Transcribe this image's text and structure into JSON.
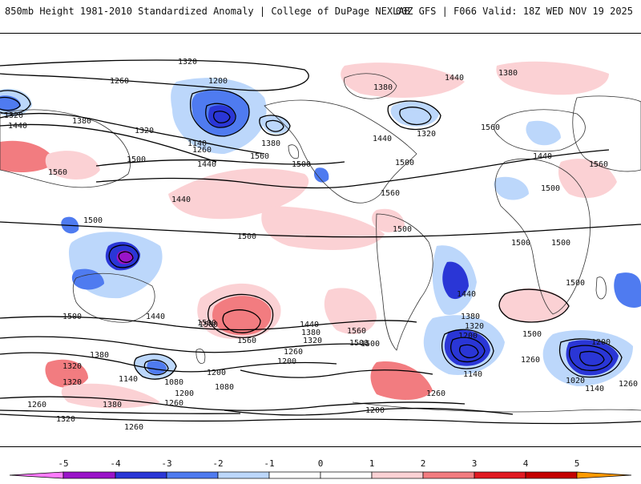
{
  "header": {
    "title": "850mb Height 1981-2010 Standardized Anomaly | College of DuPage NEXLAB",
    "run_info": "00Z GFS | F066 Valid: 18Z WED NOV 19 2025"
  },
  "colors": {
    "neg5": "#ff7bff",
    "neg4": "#9a14c8",
    "neg3": "#2a36d6",
    "neg2": "#4f7bf0",
    "neg1": "#bcd7fb",
    "pos1": "#fbd1d4",
    "pos2": "#f27c80",
    "pos3": "#e11a22",
    "pos4": "#c40000",
    "pos5": "#ff9a00",
    "contour": "#000000",
    "land": "#333333"
  },
  "legend": {
    "ticks": [
      "-5",
      "-4",
      "-3",
      "-2",
      "-1",
      "0",
      "1",
      "2",
      "3",
      "4",
      "5"
    ]
  },
  "contour_labels": [
    "1320",
    "1260",
    "1200",
    "1320",
    "1440",
    "1380",
    "1320",
    "1140",
    "1260",
    "1380",
    "1500",
    "1560",
    "1560",
    "1440",
    "1500",
    "1380",
    "1320",
    "1440",
    "1380",
    "1560",
    "1440",
    "1500",
    "1560",
    "1500",
    "1440",
    "1500",
    "1500",
    "1500",
    "1560",
    "1440",
    "1380",
    "1320",
    "1200",
    "1140",
    "1500",
    "1200",
    "1260",
    "1560",
    "1500",
    "1440",
    "1380",
    "1320",
    "1260",
    "1200",
    "1140",
    "1080",
    "1200",
    "1260",
    "1080",
    "1320",
    "1380",
    "1320",
    "1260",
    "1200",
    "1260",
    "1320",
    "1380",
    "1440",
    "1500",
    "1500",
    "1560",
    "1500",
    "1500",
    "1440",
    "1260",
    "1200",
    "1020",
    "1140",
    "1260",
    "1500",
    "1500",
    "1500"
  ]
}
